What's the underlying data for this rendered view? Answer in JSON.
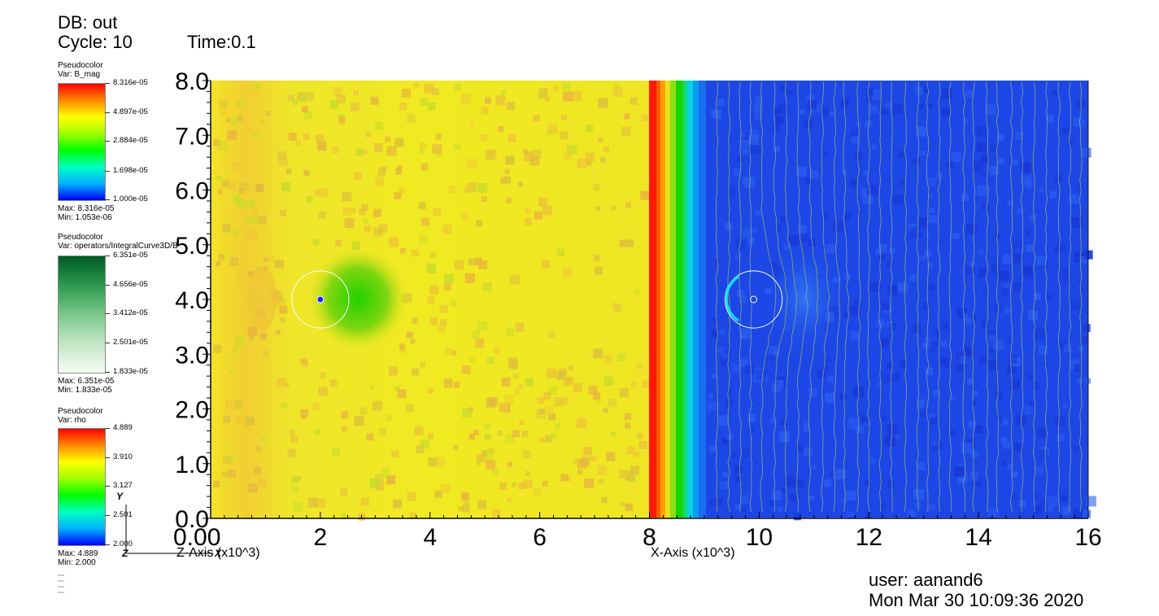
{
  "header": {
    "db": "DB: out",
    "cycle": "Cycle: 10",
    "time": "Time:0.1"
  },
  "legends": [
    {
      "plot_type": "Pseudocolor",
      "var": "Var: B_mag",
      "ticks": [
        "8.316e-05",
        "4.897e-05",
        "2.884e-05",
        "1.698e-05",
        "1.000e-05"
      ],
      "max": "Max:  8.316e-05",
      "min": "Min:  1.053e-06",
      "colormap": "hot"
    },
    {
      "plot_type": "Pseudocolor",
      "var": "Var: operators/IntegralCurve3D/B",
      "ticks": [
        "6.351e-05",
        "4.656e-05",
        "3.412e-05",
        "2.501e-05",
        "1.833e-05"
      ],
      "max": "Max:  6.351e-05",
      "min": "Min:  1.833e-05",
      "colormap": "greens"
    },
    {
      "plot_type": "Pseudocolor",
      "var": "Var: rho",
      "ticks": [
        "4.889",
        "3.910",
        "3.127",
        "2.501",
        "2.000"
      ],
      "max": "Max:  4.889",
      "min": "Min:  2.000",
      "colormap": "hot"
    }
  ],
  "triad": {
    "y": "Y",
    "z": "Z",
    "x": "X"
  },
  "chart_data": {
    "type": "heatmap",
    "title": "",
    "yticks": [
      "0.0",
      "1.0",
      "2.0",
      "3.0",
      "4.0",
      "5.0",
      "6.0",
      "7.0",
      "8.0"
    ],
    "xticks": [
      "2",
      "4",
      "6",
      "8",
      "10",
      "12",
      "14",
      "16"
    ],
    "overlap_tick": "0.00",
    "xlabel_left": "Z-Axis (x10^3)",
    "xlabel_right": "X-Axis (x10^3)",
    "ylim": [
      0,
      8
    ],
    "xlim": [
      0,
      16
    ],
    "panels": [
      {
        "name": "left",
        "field": "rho",
        "dominant_color": "#f1ea1e",
        "xrange": [
          0,
          8
        ]
      },
      {
        "name": "right",
        "field": "B_mag",
        "dominant_color": "#1d4be8",
        "xrange": [
          8,
          16
        ]
      }
    ],
    "circles": [
      {
        "cx": 2.0,
        "cy": 4.0,
        "r": 0.52
      },
      {
        "cx": 9.9,
        "cy": 4.0,
        "r": 0.52
      }
    ]
  },
  "footer": {
    "user": "user: aanand6",
    "datetime": "Mon Mar 30 10:09:36 2020"
  }
}
